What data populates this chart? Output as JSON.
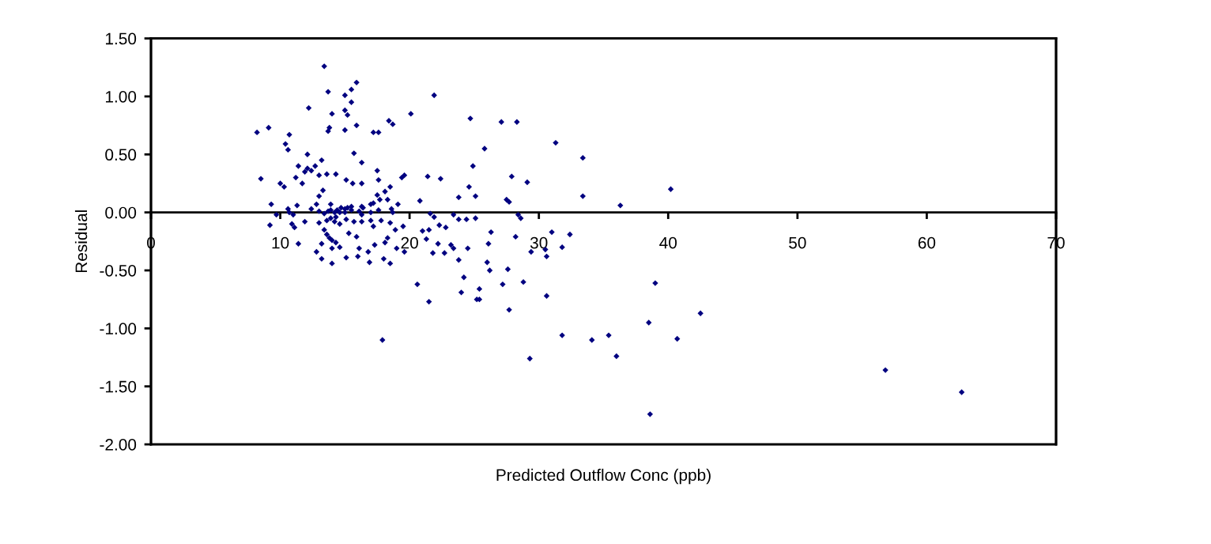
{
  "chart_data": {
    "type": "scatter",
    "xlabel": "Predicted Outflow Conc (ppb)",
    "ylabel": "Residual",
    "color": "#000080",
    "marker": "diamond",
    "xlim": [
      0,
      70
    ],
    "xticks": [
      0,
      10,
      20,
      30,
      40,
      50,
      60,
      70
    ],
    "ylim": [
      -2.0,
      1.5
    ],
    "yticks": [
      {
        "value": 1.5,
        "label": "1.50"
      },
      {
        "value": 1.0,
        "label": "1.00"
      },
      {
        "value": 0.5,
        "label": "0.50"
      },
      {
        "value": 0.0,
        "label": "0.00"
      },
      {
        "value": -0.5,
        "label": "-0.50"
      },
      {
        "value": -1.0,
        "label": "-1.00"
      },
      {
        "value": -1.5,
        "label": "-1.50"
      },
      {
        "value": -2.0,
        "label": "-2.00"
      }
    ],
    "x": [
      13.4,
      15.9,
      15.5,
      13.7,
      15.0,
      15.5,
      12.2,
      21.9,
      14.0,
      15.0,
      15.2,
      20.1,
      18.4,
      18.7,
      15.9,
      13.8,
      13.7,
      15.0,
      8.2,
      9.1,
      10.7,
      17.2,
      17.6,
      10.4,
      10.6,
      12.1,
      15.7,
      13.2,
      16.3,
      11.4,
      12.7,
      12.1,
      12.4,
      11.9,
      13.0,
      13.6,
      14.3,
      11.2,
      8.5,
      17.5,
      17.6,
      15.1,
      15.6,
      16.3,
      11.7,
      10.0,
      10.3,
      19.6,
      19.4,
      21.4,
      22.4,
      13.3,
      13.0,
      18.5,
      18.1,
      17.7,
      18.3,
      17.5,
      17.2,
      19.1,
      20.8,
      9.3,
      10.6,
      11.3,
      12.4,
      12.8,
      13.9,
      15.5,
      15.0,
      16.3,
      17.0,
      16.4,
      18.6,
      14.6,
      24.7,
      27.1,
      28.3,
      25.8,
      24.9,
      31.3,
      33.4,
      27.9,
      29.1,
      24.6,
      23.8,
      25.1,
      27.5,
      27.7,
      33.4,
      36.3,
      40.2,
      21.9,
      21.6,
      23.4,
      23.8,
      24.4,
      25.1,
      28.4,
      28.6,
      22.3,
      22.8,
      21.3,
      22.2,
      21.8,
      22.7,
      23.2,
      23.4,
      23.8,
      24.5,
      26.3,
      26.1,
      26.0,
      26.2,
      28.2,
      27.6,
      24.2,
      27.2,
      28.8,
      25.4,
      24.0,
      25.2,
      25.4,
      21.5,
      27.7,
      29.4,
      30.5,
      30.6,
      31.0,
      32.4,
      31.8,
      30.6,
      39.0,
      42.5,
      38.5,
      40.7,
      31.8,
      34.1,
      35.4,
      36.0,
      29.3,
      38.6,
      56.8,
      62.7,
      9.7,
      10.7,
      11.0,
      13.0,
      13.4,
      13.7,
      13.9,
      14.2,
      14.4,
      14.7,
      15.0,
      15.2,
      15.5,
      16.1,
      16.3,
      17.0,
      17.6,
      18.7,
      9.2,
      10.9,
      11.1,
      11.9,
      13.0,
      13.6,
      13.9,
      14.2,
      14.3,
      14.6,
      15.1,
      15.7,
      16.3,
      17.0,
      17.2,
      17.8,
      18.5,
      19.5,
      18.9,
      21.0,
      21.5,
      13.4,
      13.6,
      13.8,
      14.0,
      14.3,
      14.6,
      15.3,
      15.9,
      16.1,
      17.3,
      18.1,
      18.3,
      19.0,
      19.6,
      11.4,
      13.2,
      14.0,
      12.8,
      13.2,
      14.0,
      15.1,
      16.0,
      16.8,
      16.9,
      18.0,
      18.5,
      20.6,
      17.9
    ],
    "values": [
      1.26,
      1.12,
      1.06,
      1.04,
      1.01,
      0.95,
      0.9,
      1.01,
      0.85,
      0.88,
      0.84,
      0.85,
      0.79,
      0.76,
      0.75,
      0.73,
      0.7,
      0.71,
      0.69,
      0.73,
      0.67,
      0.69,
      0.69,
      0.59,
      0.54,
      0.5,
      0.51,
      0.45,
      0.43,
      0.4,
      0.4,
      0.38,
      0.36,
      0.35,
      0.32,
      0.33,
      0.33,
      0.3,
      0.29,
      0.36,
      0.28,
      0.28,
      0.25,
      0.25,
      0.25,
      0.25,
      0.22,
      0.32,
      0.3,
      0.31,
      0.29,
      0.19,
      0.14,
      0.22,
      0.18,
      0.11,
      0.11,
      0.15,
      0.08,
      0.07,
      0.1,
      0.07,
      0.03,
      0.06,
      0.03,
      0.07,
      0.07,
      0.05,
      0.03,
      0.05,
      0.07,
      0.04,
      0.03,
      0.0,
      0.81,
      0.78,
      0.78,
      0.55,
      0.4,
      0.6,
      0.47,
      0.31,
      0.26,
      0.22,
      0.13,
      0.14,
      0.11,
      0.09,
      0.14,
      0.06,
      0.2,
      -0.04,
      -0.01,
      -0.02,
      -0.06,
      -0.06,
      -0.05,
      -0.02,
      -0.05,
      -0.11,
      -0.13,
      -0.23,
      -0.27,
      -0.35,
      -0.35,
      -0.28,
      -0.31,
      -0.41,
      -0.31,
      -0.17,
      -0.27,
      -0.43,
      -0.5,
      -0.21,
      -0.49,
      -0.56,
      -0.62,
      -0.6,
      -0.66,
      -0.69,
      -0.75,
      -0.75,
      -0.77,
      -0.84,
      -0.34,
      -0.32,
      -0.38,
      -0.17,
      -0.19,
      -0.3,
      -0.72,
      -0.61,
      -0.87,
      -0.95,
      -1.09,
      -1.06,
      -1.1,
      -1.06,
      -1.24,
      -1.26,
      -1.74,
      -1.36,
      -1.55,
      -0.02,
      0.0,
      -0.02,
      0.01,
      -0.01,
      0.01,
      0.02,
      0.0,
      0.02,
      0.04,
      0.0,
      0.04,
      0.02,
      0.01,
      -0.02,
      0.0,
      0.02,
      0.0,
      -0.11,
      -0.1,
      -0.13,
      -0.08,
      -0.09,
      -0.07,
      -0.05,
      -0.08,
      -0.04,
      -0.1,
      -0.06,
      -0.08,
      -0.08,
      -0.07,
      -0.12,
      -0.07,
      -0.09,
      -0.12,
      -0.15,
      -0.16,
      -0.15,
      -0.15,
      -0.19,
      -0.22,
      -0.24,
      -0.26,
      -0.3,
      -0.18,
      -0.21,
      -0.31,
      -0.28,
      -0.26,
      -0.22,
      -0.31,
      -0.34,
      -0.27,
      -0.27,
      -0.31,
      -0.34,
      -0.4,
      -0.44,
      -0.39,
      -0.38,
      -0.34,
      -0.43,
      -0.4,
      -0.44,
      -0.62,
      -1.1
    ]
  }
}
